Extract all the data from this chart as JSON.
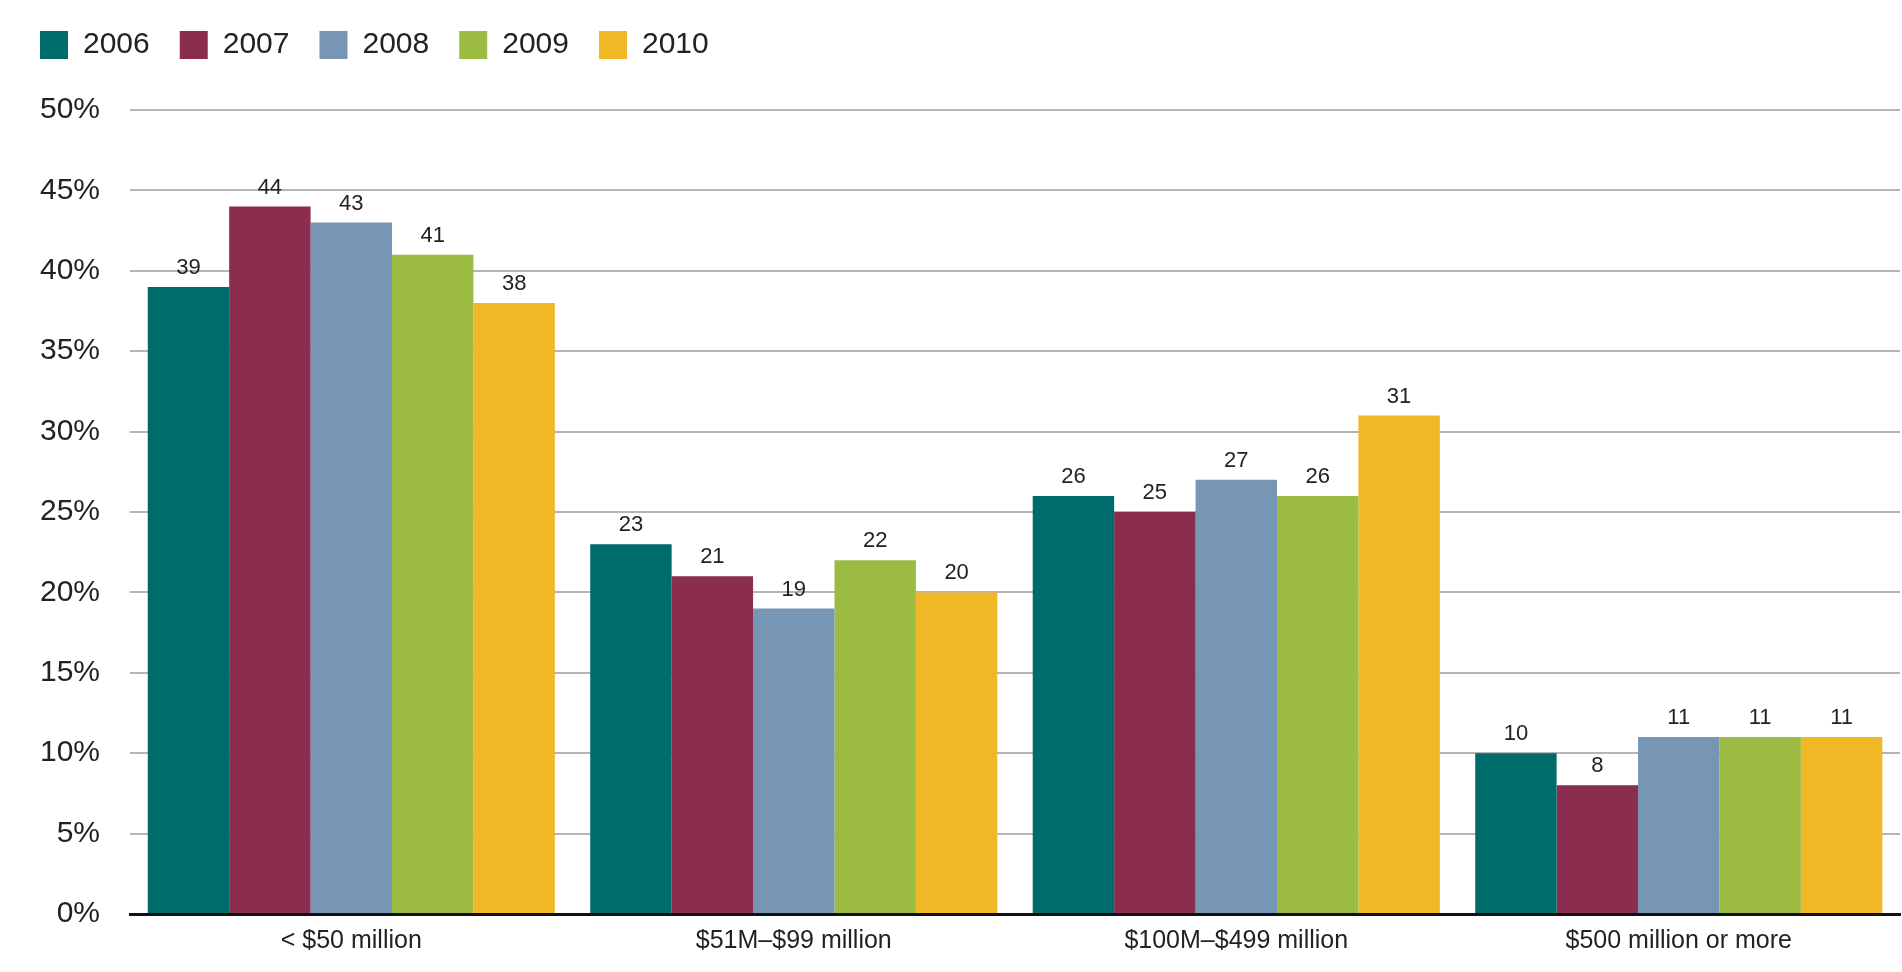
{
  "chart_data": {
    "type": "bar",
    "categories": [
      "< $50 million",
      "$51M–$99 million",
      "$100M–$499 million",
      "$500 million or more"
    ],
    "series": [
      {
        "name": "2006",
        "color": "#006b6b",
        "values": [
          39,
          23,
          26,
          10
        ]
      },
      {
        "name": "2007",
        "color": "#8b2d4f",
        "values": [
          44,
          21,
          25,
          8
        ]
      },
      {
        "name": "2008",
        "color": "#7795b5",
        "values": [
          43,
          19,
          27,
          11
        ]
      },
      {
        "name": "2009",
        "color": "#9bbb42",
        "values": [
          41,
          22,
          26,
          11
        ]
      },
      {
        "name": "2010",
        "color": "#efb824",
        "values": [
          38,
          20,
          31,
          11
        ]
      }
    ],
    "ylim": [
      0,
      50
    ],
    "yticks": [
      {
        "value": 0,
        "label": "0%"
      },
      {
        "value": 5,
        "label": "5%"
      },
      {
        "value": 10,
        "label": "10%"
      },
      {
        "value": 15,
        "label": "15%"
      },
      {
        "value": 20,
        "label": "20%"
      },
      {
        "value": 25,
        "label": "25%"
      },
      {
        "value": 30,
        "label": "30%"
      },
      {
        "value": 35,
        "label": "35%"
      },
      {
        "value": 40,
        "label": "40%"
      },
      {
        "value": 45,
        "label": "45%"
      },
      {
        "value": 50,
        "label": "50%"
      }
    ],
    "grid": "y",
    "legend": "top left",
    "data_labels": true
  }
}
